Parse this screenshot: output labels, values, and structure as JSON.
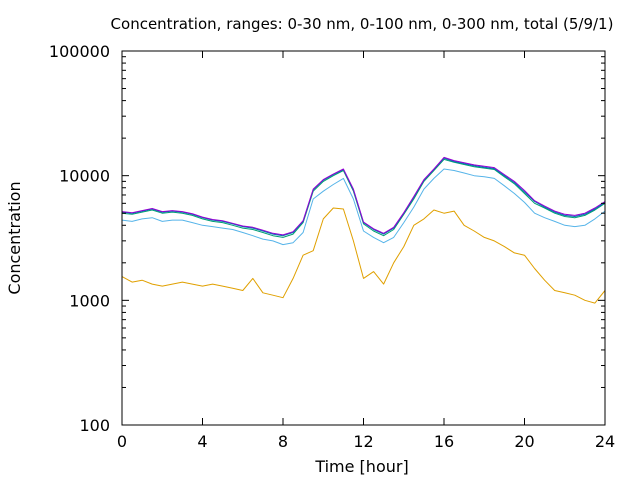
{
  "chart_data": {
    "type": "line",
    "title": "Concentration, ranges: 0-30 nm, 0-100 nm, 0-300 nm, total (5/9/1)",
    "xlabel": "Time [hour]",
    "ylabel": "Concentration",
    "xlim": [
      0,
      24
    ],
    "ylim": [
      100,
      100000
    ],
    "yscale": "log",
    "grid": false,
    "legend": "none",
    "x_ticks": [
      "0",
      "4",
      "8",
      "12",
      "16",
      "20",
      "24"
    ],
    "y_ticks": [
      "100",
      "1000",
      "10000",
      "100000"
    ],
    "x": [
      0.0,
      0.5,
      1.0,
      1.5,
      2.0,
      2.5,
      3.0,
      3.5,
      4.0,
      4.5,
      5.0,
      5.5,
      6.0,
      6.5,
      7.0,
      7.5,
      8.0,
      8.5,
      9.0,
      9.5,
      10.0,
      10.5,
      11.0,
      11.5,
      12.0,
      12.5,
      13.0,
      13.5,
      14.0,
      14.5,
      15.0,
      15.5,
      16.0,
      16.5,
      17.0,
      17.5,
      18.0,
      18.5,
      19.0,
      19.5,
      20.0,
      20.5,
      21.0,
      21.5,
      22.0,
      22.5,
      23.0,
      23.5,
      24.0
    ],
    "series": [
      {
        "color": "#e0a000",
        "values": [
          1550,
          1400,
          1450,
          1350,
          1300,
          1350,
          1400,
          1350,
          1300,
          1350,
          1300,
          1250,
          1200,
          1500,
          1150,
          1100,
          1050,
          1500,
          2300,
          2500,
          4500,
          5500,
          5400,
          3000,
          1500,
          1700,
          1350,
          2000,
          2700,
          4000,
          4500,
          5300,
          5000,
          5200,
          4000,
          3600,
          3200,
          3000,
          2700,
          2400,
          2300,
          1800,
          1450,
          1200,
          1150,
          1100,
          1000,
          950,
          1200
        ]
      },
      {
        "color": "#56b4e9",
        "values": [
          4400,
          4300,
          4500,
          4600,
          4300,
          4400,
          4400,
          4200,
          4000,
          3900,
          3800,
          3700,
          3500,
          3300,
          3100,
          3000,
          2800,
          2900,
          3500,
          6500,
          7500,
          8500,
          9500,
          6500,
          3600,
          3200,
          2900,
          3200,
          4200,
          5600,
          7800,
          9500,
          11300,
          11000,
          10500,
          10000,
          9800,
          9500,
          8300,
          7200,
          6100,
          5000,
          4600,
          4300,
          4000,
          3900,
          4000,
          4500,
          5200
        ]
      },
      {
        "color": "#009e73",
        "values": [
          5000,
          4900,
          5100,
          5300,
          5000,
          5100,
          5000,
          4800,
          4500,
          4300,
          4200,
          4000,
          3800,
          3700,
          3500,
          3300,
          3200,
          3400,
          4200,
          7500,
          9000,
          10000,
          11000,
          7500,
          4100,
          3600,
          3300,
          3700,
          4900,
          6500,
          9000,
          11000,
          13500,
          12800,
          12300,
          11800,
          11500,
          11200,
          9800,
          8600,
          7200,
          6000,
          5500,
          5000,
          4700,
          4600,
          4800,
          5300,
          6000
        ]
      },
      {
        "color": "#0072b2",
        "values": [
          5100,
          5000,
          5200,
          5400,
          5100,
          5200,
          5100,
          4900,
          4600,
          4400,
          4300,
          4100,
          3900,
          3800,
          3600,
          3400,
          3300,
          3500,
          4300,
          7700,
          9200,
          10200,
          11200,
          7700,
          4200,
          3700,
          3400,
          3800,
          5000,
          6700,
          9200,
          11200,
          13800,
          13000,
          12500,
          12000,
          11700,
          11400,
          10000,
          8800,
          7400,
          6200,
          5600,
          5100,
          4800,
          4700,
          4900,
          5400,
          6100
        ]
      },
      {
        "color": "#9400d3",
        "values": [
          5150,
          5050,
          5250,
          5450,
          5150,
          5250,
          5150,
          4950,
          4650,
          4450,
          4350,
          4150,
          3950,
          3850,
          3650,
          3450,
          3350,
          3550,
          4350,
          7800,
          9300,
          10300,
          11300,
          7800,
          4250,
          3750,
          3450,
          3850,
          5050,
          6800,
          9300,
          11300,
          14000,
          13200,
          12700,
          12200,
          11900,
          11600,
          10200,
          9000,
          7600,
          6300,
          5700,
          5200,
          4900,
          4800,
          5000,
          5500,
          6200
        ]
      }
    ]
  }
}
